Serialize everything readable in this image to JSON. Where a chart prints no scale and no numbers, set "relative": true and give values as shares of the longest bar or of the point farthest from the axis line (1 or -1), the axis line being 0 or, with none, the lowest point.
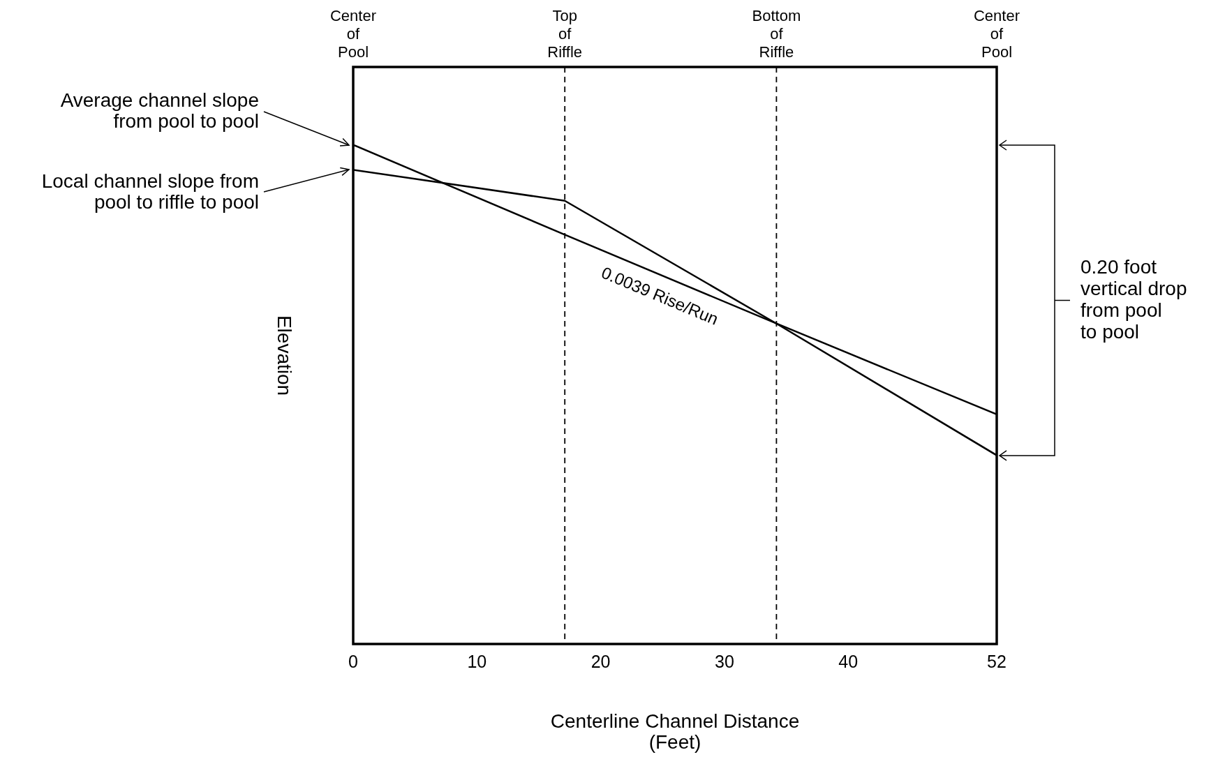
{
  "chart_data": {
    "type": "line",
    "relative": true,
    "xlabel": "Centerline Channel Distance\n(Feet)",
    "ylabel": "Elevation",
    "xlim": [
      0,
      52
    ],
    "xticks": [
      0,
      10,
      20,
      30,
      40,
      52
    ],
    "grid": false,
    "legend": "left",
    "marker": "none",
    "line_style": "solid",
    "tick_labels": "x",
    "series": [
      {
        "name": "Average channel slope\nfrom pool to pool",
        "color": "#000000",
        "x": [
          0,
          17.1,
          34.2,
          52
        ],
        "values": [
          1,
          0.82,
          0.642,
          0.378
        ]
      },
      {
        "name": "Local channel slope from\npool to riffle to pool",
        "color": "#000000",
        "x": [
          0,
          17.1,
          34.2,
          52
        ],
        "values": [
          0.95,
          0.888,
          0.642,
          0.46
        ]
      }
    ],
    "ref_lines": [
      {
        "axis": "x",
        "value": 17.1,
        "label": "Top\nof\nRiffle",
        "color": "#000000",
        "line_style": "dashed"
      },
      {
        "axis": "x",
        "value": 34.2,
        "label": "Bottom\nof\nRiffle",
        "color": "#000000",
        "line_style": "dashed"
      }
    ],
    "annotations": [
      "Center\nof\nPool",
      "Center\nof\nPool",
      {
        "text": "0.0039 Rise/Run",
        "x": 25.4,
        "y": 0.734
      },
      "0.20 foot\nvertical drop\nfrom pool\nto pool"
    ]
  }
}
